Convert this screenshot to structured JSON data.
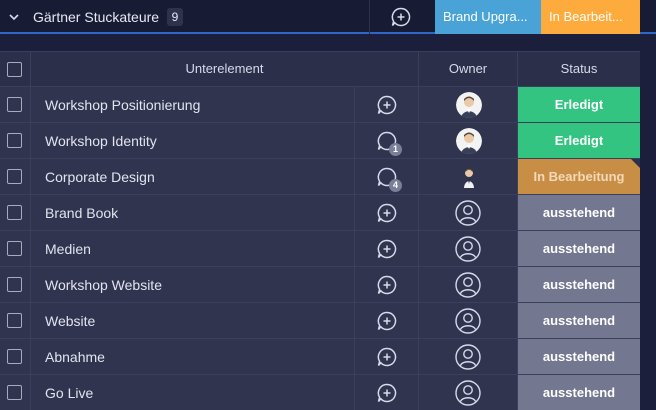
{
  "group": {
    "title": "Gärtner Stuckateure",
    "count": "9",
    "tag_blue": "Brand Upgra...",
    "tag_orange": "In Bearbeit...",
    "colors": {
      "blue": "#4aa3d6",
      "orange": "#fdab3d"
    }
  },
  "table": {
    "headers": {
      "name": "Unterelement",
      "owner": "Owner",
      "status": "Status"
    },
    "rows": [
      {
        "name": "Workshop Positionierung",
        "updates": "",
        "owner": "avatar",
        "status": "Erledigt"
      },
      {
        "name": "Workshop Identity",
        "updates": "1",
        "owner": "avatar",
        "status": "Erledigt"
      },
      {
        "name": "Corporate Design",
        "updates": "4",
        "owner": "avatar-small",
        "status": "In Bearbeitung"
      },
      {
        "name": "Brand Book",
        "updates": "",
        "owner": "empty",
        "status": "ausstehend"
      },
      {
        "name": "Medien",
        "updates": "",
        "owner": "empty",
        "status": "ausstehend"
      },
      {
        "name": "Workshop Website",
        "updates": "",
        "owner": "empty",
        "status": "ausstehend"
      },
      {
        "name": "Website",
        "updates": "",
        "owner": "empty",
        "status": "ausstehend"
      },
      {
        "name": "Abnahme",
        "updates": "",
        "owner": "empty",
        "status": "ausstehend"
      },
      {
        "name": "Go Live",
        "updates": "",
        "owner": "empty",
        "status": "ausstehend"
      }
    ]
  },
  "status_colors": {
    "Erledigt": "#33c481",
    "In Bearbeitung": "#c98e45",
    "ausstehend": "#737790"
  },
  "status_text_colors": {
    "Erledigt": "#ffffff",
    "In Bearbeitung": "#f2d9b8",
    "ausstehend": "#ffffff"
  }
}
